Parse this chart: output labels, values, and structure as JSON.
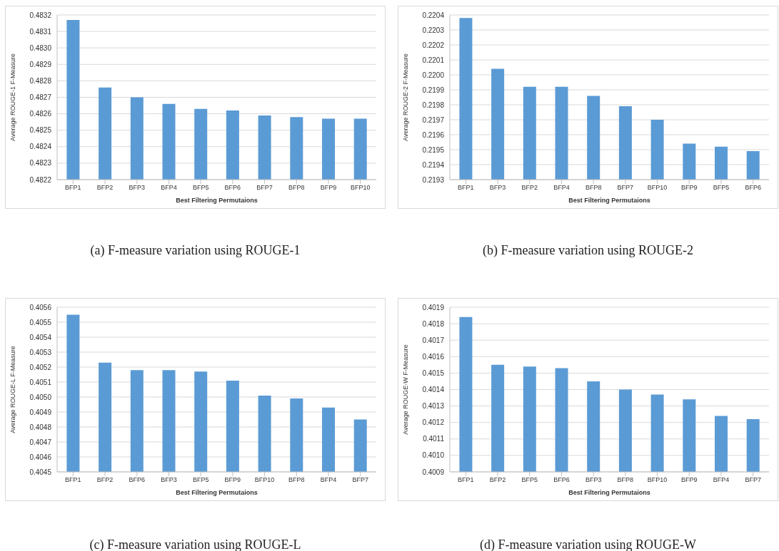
{
  "chart_data": [
    {
      "type": "bar",
      "xlabel": "Best Filtering Permutaions",
      "ylabel": "Average ROUGE-1 F-Measure",
      "annotations": [
        "(a) F-measure variation using ROUGE-1"
      ],
      "color": "#5b9bd5",
      "grid": "y",
      "categories": [
        "BFP1",
        "BFP2",
        "BFP3",
        "BFP4",
        "BFP5",
        "BFP6",
        "BFP7",
        "BFP8",
        "BFP9",
        "BFP10"
      ],
      "values": [
        0.48317,
        0.48276,
        0.4827,
        0.48266,
        0.48263,
        0.48262,
        0.48259,
        0.48258,
        0.48257,
        0.48257
      ],
      "ylim": [
        0.4822,
        0.4832
      ],
      "yticks": [
        {
          "value": 0.4822,
          "label": "0.4822"
        },
        {
          "value": 0.4823,
          "label": "0.4823"
        },
        {
          "value": 0.4824,
          "label": "0.4824"
        },
        {
          "value": 0.4825,
          "label": "0.4825"
        },
        {
          "value": 0.4826,
          "label": "0.4826"
        },
        {
          "value": 0.4827,
          "label": "0.4827"
        },
        {
          "value": 0.4828,
          "label": "0.4828"
        },
        {
          "value": 0.4829,
          "label": "0.4829"
        },
        {
          "value": 0.483,
          "label": "0.4830"
        },
        {
          "value": 0.4831,
          "label": "0.4831"
        },
        {
          "value": 0.4832,
          "label": "0.4832"
        }
      ]
    },
    {
      "type": "bar",
      "xlabel": "Best Filtering Permutaions",
      "ylabel": "Average ROUGE-2 F-Measure",
      "annotations": [
        "(b) F-measure variation using ROUGE-2"
      ],
      "color": "#5b9bd5",
      "grid": "y",
      "categories": [
        "BFP1",
        "BFP3",
        "BFP2",
        "BFP4",
        "BFP8",
        "BFP7",
        "BFP10",
        "BFP9",
        "BFP5",
        "BFP6"
      ],
      "values": [
        0.22038,
        0.22004,
        0.21992,
        0.21992,
        0.21986,
        0.21979,
        0.2197,
        0.21954,
        0.21952,
        0.21949
      ],
      "ylim": [
        0.2193,
        0.2204
      ],
      "yticks": [
        {
          "value": 0.2193,
          "label": "0.2193"
        },
        {
          "value": 0.2194,
          "label": "0.2194"
        },
        {
          "value": 0.2195,
          "label": "0.2195"
        },
        {
          "value": 0.2196,
          "label": "0.2196"
        },
        {
          "value": 0.2197,
          "label": "0.2197"
        },
        {
          "value": 0.2198,
          "label": "0.2198"
        },
        {
          "value": 0.2199,
          "label": "0.2199"
        },
        {
          "value": 0.22,
          "label": "0.2200"
        },
        {
          "value": 0.2201,
          "label": "0.2201"
        },
        {
          "value": 0.2202,
          "label": "0.2202"
        },
        {
          "value": 0.2203,
          "label": "0.2203"
        },
        {
          "value": 0.2204,
          "label": "0.2204"
        }
      ]
    },
    {
      "type": "bar",
      "xlabel": "Best Filtering Permutaions",
      "ylabel": "Average ROUGE-L F-Measure",
      "annotations": [
        "(c) F-measure variation using ROUGE-L"
      ],
      "color": "#5b9bd5",
      "grid": "y",
      "categories": [
        "BFP1",
        "BFP2",
        "BFP6",
        "BFP3",
        "BFP5",
        "BFP9",
        "BFP10",
        "BFP8",
        "BFP4",
        "BFP7"
      ],
      "values": [
        0.40555,
        0.40523,
        0.40518,
        0.40518,
        0.40517,
        0.40511,
        0.40501,
        0.40499,
        0.40493,
        0.40485
      ],
      "ylim": [
        0.4045,
        0.4056
      ],
      "yticks": [
        {
          "value": 0.4045,
          "label": "0.4045"
        },
        {
          "value": 0.4046,
          "label": "0.4046"
        },
        {
          "value": 0.4047,
          "label": "0.4047"
        },
        {
          "value": 0.4048,
          "label": "0.4048"
        },
        {
          "value": 0.4049,
          "label": "0.4049"
        },
        {
          "value": 0.405,
          "label": "0.4050"
        },
        {
          "value": 0.4051,
          "label": "0.4051"
        },
        {
          "value": 0.4052,
          "label": "0.4052"
        },
        {
          "value": 0.4053,
          "label": "0.4053"
        },
        {
          "value": 0.4054,
          "label": "0.4054"
        },
        {
          "value": 0.4055,
          "label": "0.4055"
        },
        {
          "value": 0.4056,
          "label": "0.4056"
        }
      ]
    },
    {
      "type": "bar",
      "xlabel": "Best Filtering Permutaions",
      "ylabel": "Average ROUGE-W F-Measure",
      "annotations": [
        "(d) F-measure variation using ROUGE-W"
      ],
      "color": "#5b9bd5",
      "grid": "y",
      "categories": [
        "BFP1",
        "BFP2",
        "BFP5",
        "BFP6",
        "BFP3",
        "BFP8",
        "BFP10",
        "BFP9",
        "BFP4",
        "BFP7"
      ],
      "values": [
        0.40184,
        0.40155,
        0.40154,
        0.40153,
        0.40145,
        0.4014,
        0.40137,
        0.40134,
        0.40124,
        0.40122
      ],
      "ylim": [
        0.4009,
        0.4019
      ],
      "yticks": [
        {
          "value": 0.4009,
          "label": "0.4009"
        },
        {
          "value": 0.401,
          "label": "0.4010"
        },
        {
          "value": 0.4011,
          "label": "0.4011"
        },
        {
          "value": 0.4012,
          "label": "0.4012"
        },
        {
          "value": 0.4013,
          "label": "0.4013"
        },
        {
          "value": 0.4014,
          "label": "0.4014"
        },
        {
          "value": 0.4015,
          "label": "0.4015"
        },
        {
          "value": 0.4016,
          "label": "0.4016"
        },
        {
          "value": 0.4017,
          "label": "0.4017"
        },
        {
          "value": 0.4018,
          "label": "0.4018"
        },
        {
          "value": 0.4019,
          "label": "0.4019"
        }
      ]
    }
  ]
}
